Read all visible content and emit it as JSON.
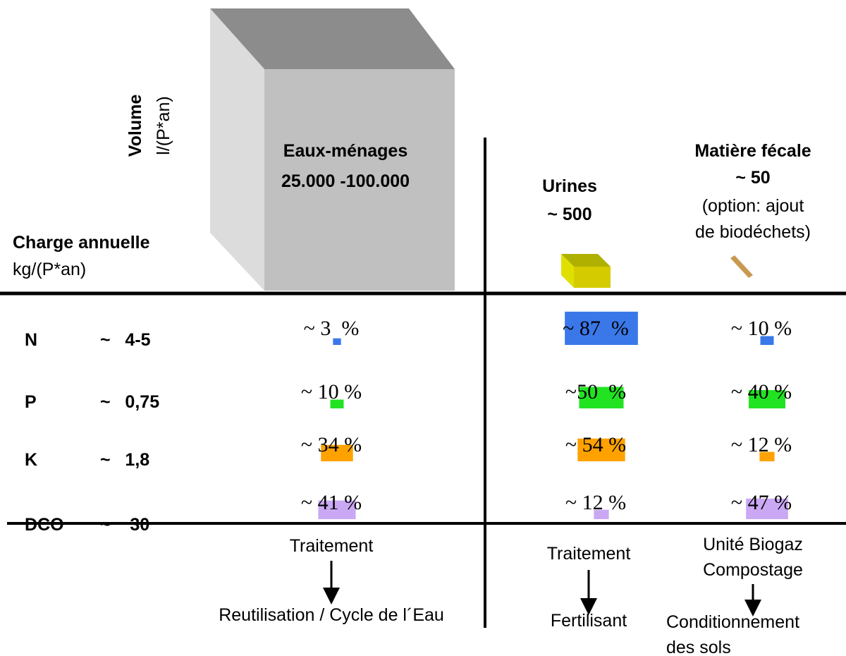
{
  "volume": {
    "title": "Volume",
    "unit": "l/(P*an)"
  },
  "load_header": {
    "title": "Charge annuelle",
    "unit": "kg/(P*an)"
  },
  "columns": [
    {
      "lines": [
        "Eaux-ménages",
        "25.000 -100.000"
      ]
    },
    {
      "lines": [
        "Urines",
        "~ 500"
      ]
    },
    {
      "lines": [
        "Matière fécale",
        "~ 50",
        "(option: ajout",
        "de biodéchets)"
      ]
    }
  ],
  "rows": [
    {
      "name": "N",
      "load": "~   4-5",
      "cells": [
        {
          "label": "~ 3  %",
          "value": 3
        },
        {
          "label": "~ 87  %",
          "value": 87
        },
        {
          "label": "~ 10 %",
          "value": 10
        }
      ]
    },
    {
      "name": "P",
      "load": "~   0,75",
      "cells": [
        {
          "label": "~ 10 %",
          "value": 10
        },
        {
          "label": "~50  %",
          "value": 50
        },
        {
          "label": "~ 40 %",
          "value": 40
        }
      ]
    },
    {
      "name": "K",
      "load": "~   1,8",
      "cells": [
        {
          "label": "~ 34 %",
          "value": 34
        },
        {
          "label": "~ 54 %",
          "value": 54
        },
        {
          "label": "~ 12 %",
          "value": 12
        }
      ]
    },
    {
      "name": "DCO",
      "load": "~    30",
      "cells": [
        {
          "label": "~ 41 %",
          "value": 41
        },
        {
          "label": "~ 12 %",
          "value": 12
        },
        {
          "label": "~ 47 %",
          "value": 47
        }
      ]
    }
  ],
  "row_colors": [
    "#3a78ea",
    "#22e322",
    "#ffa200",
    "#caa8f4"
  ],
  "outcomes": [
    {
      "process": [
        "Traitement"
      ],
      "result": [
        "Reutilisation / Cycle de l´Eau"
      ]
    },
    {
      "process": [
        "Traitement"
      ],
      "result": [
        "Fertilisant"
      ]
    },
    {
      "process": [
        "Unité Biogaz",
        "Compostage"
      ],
      "result": [
        "Conditionnement",
        "des sols"
      ]
    }
  ]
}
